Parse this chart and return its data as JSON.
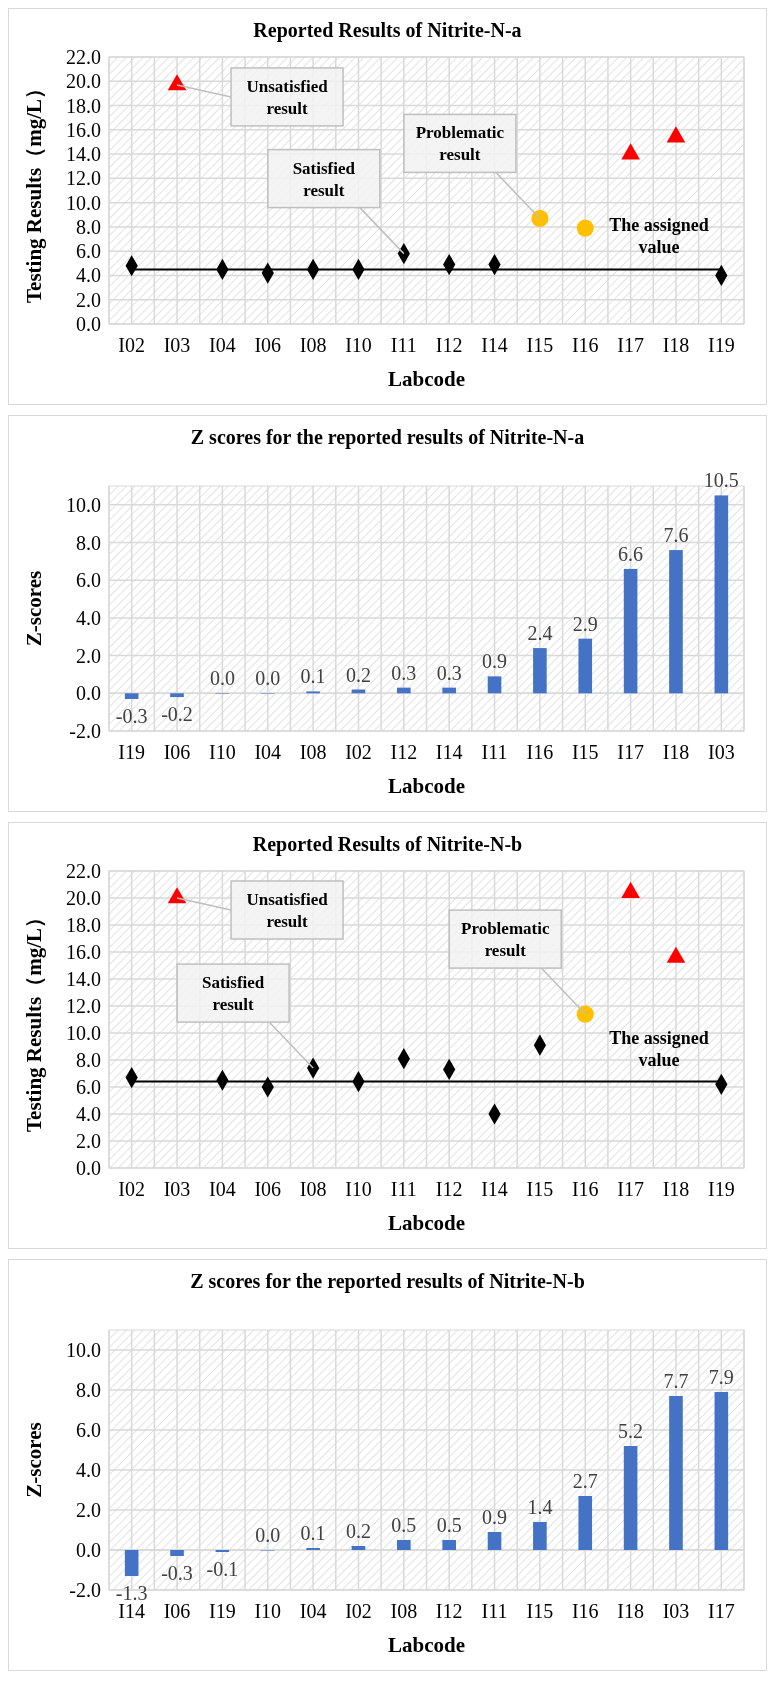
{
  "chart_data": [
    {
      "type": "scatter",
      "title": "Reported Results of Nitrite-N-a",
      "xlabel": "Labcode",
      "ylabel": "Testing Results（mg/L）",
      "categories": [
        "I02",
        "I03",
        "I04",
        "I06",
        "I08",
        "I10",
        "I11",
        "I12",
        "I14",
        "I15",
        "I16",
        "I17",
        "I18",
        "I19"
      ],
      "series": [
        {
          "color": "#000000",
          "marker": "diamond",
          "values": [
            4.8,
            null,
            4.5,
            4.2,
            4.5,
            4.5,
            5.8,
            4.9,
            4.9,
            null,
            null,
            null,
            null,
            4.0
          ]
        },
        {
          "color": "#ffc000",
          "marker": "circle",
          "values": [
            null,
            null,
            null,
            null,
            null,
            null,
            null,
            null,
            null,
            8.7,
            7.9,
            null,
            null,
            null
          ]
        },
        {
          "color": "#ff0000",
          "marker": "triangle",
          "values": [
            null,
            19.7,
            null,
            null,
            null,
            null,
            null,
            null,
            null,
            null,
            null,
            14.0,
            15.4,
            null
          ]
        }
      ],
      "ylim": [
        0,
        22
      ],
      "yticks": [
        {
          "value": 0,
          "label": "0.0"
        },
        {
          "value": 2,
          "label": "2.0"
        },
        {
          "value": 4,
          "label": "4.0"
        },
        {
          "value": 6,
          "label": "6.0"
        },
        {
          "value": 8,
          "label": "8.0"
        },
        {
          "value": 10,
          "label": "10.0"
        },
        {
          "value": 12,
          "label": "12.0"
        },
        {
          "value": 14,
          "label": "14.0"
        },
        {
          "value": 16,
          "label": "16.0"
        },
        {
          "value": 18,
          "label": "18.0"
        },
        {
          "value": 20,
          "label": "20.0"
        },
        {
          "value": 22,
          "label": "22.0"
        }
      ],
      "ref_lines": [
        {
          "axis": "y",
          "value": 4.5,
          "label": "The assigned value",
          "color": "#000000"
        }
      ],
      "annotations": [
        {
          "text": "Unsatisfied result",
          "x": "I03",
          "y": 19.7
        },
        {
          "text": "Satisfied result",
          "x": "I11",
          "y": 5.8
        },
        {
          "text": "Problematic result",
          "x": "I15",
          "y": 8.7
        }
      ],
      "grid": true
    },
    {
      "type": "bar",
      "title": "Z scores for the reported results of Nitrite-N-a",
      "xlabel": "Labcode",
      "ylabel": "Z-scores",
      "categories": [
        "I19",
        "I06",
        "I10",
        "I04",
        "I08",
        "I02",
        "I12",
        "I14",
        "I11",
        "I16",
        "I15",
        "I17",
        "I18",
        "I03"
      ],
      "values": [
        -0.3,
        -0.2,
        0.0,
        0.0,
        0.1,
        0.2,
        0.3,
        0.3,
        0.9,
        2.4,
        2.9,
        6.6,
        7.6,
        10.5
      ],
      "value_labels": [
        "-0.3",
        "-0.2",
        "0.0",
        "0.0",
        "0.1",
        "0.2",
        "0.3",
        "0.3",
        "0.9",
        "2.4",
        "2.9",
        "6.6",
        "7.6",
        "10.5"
      ],
      "color": "#4472c4",
      "ylim": [
        -2,
        11
      ],
      "yticks": [
        {
          "value": -2,
          "label": "-2.0"
        },
        {
          "value": 0,
          "label": "0.0"
        },
        {
          "value": 2,
          "label": "2.0"
        },
        {
          "value": 4,
          "label": "4.0"
        },
        {
          "value": 6,
          "label": "6.0"
        },
        {
          "value": 8,
          "label": "8.0"
        },
        {
          "value": 10,
          "label": "10.0"
        }
      ],
      "grid": true
    },
    {
      "type": "scatter",
      "title": "Reported Results of Nitrite-N-b",
      "xlabel": "Labcode",
      "ylabel": "Testing Results（mg/L）",
      "categories": [
        "I02",
        "I03",
        "I04",
        "I06",
        "I08",
        "I10",
        "I11",
        "I12",
        "I14",
        "I15",
        "I16",
        "I17",
        "I18",
        "I19"
      ],
      "series": [
        {
          "color": "#000000",
          "marker": "diamond",
          "values": [
            6.7,
            null,
            6.5,
            6.0,
            7.4,
            6.4,
            8.1,
            7.3,
            4.0,
            9.1,
            null,
            null,
            null,
            6.2
          ]
        },
        {
          "color": "#ffc000",
          "marker": "circle",
          "values": [
            null,
            null,
            null,
            null,
            null,
            null,
            null,
            null,
            null,
            null,
            11.4,
            null,
            null,
            null
          ]
        },
        {
          "color": "#ff0000",
          "marker": "triangle",
          "values": [
            null,
            20.0,
            null,
            null,
            null,
            null,
            null,
            null,
            null,
            null,
            null,
            20.4,
            15.6,
            null
          ]
        }
      ],
      "ylim": [
        0,
        22
      ],
      "yticks": [
        {
          "value": 0,
          "label": "0.0"
        },
        {
          "value": 2,
          "label": "2.0"
        },
        {
          "value": 4,
          "label": "4.0"
        },
        {
          "value": 6,
          "label": "6.0"
        },
        {
          "value": 8,
          "label": "8.0"
        },
        {
          "value": 10,
          "label": "10.0"
        },
        {
          "value": 12,
          "label": "12.0"
        },
        {
          "value": 14,
          "label": "14.0"
        },
        {
          "value": 16,
          "label": "16.0"
        },
        {
          "value": 18,
          "label": "18.0"
        },
        {
          "value": 20,
          "label": "20.0"
        },
        {
          "value": 22,
          "label": "22.0"
        }
      ],
      "ref_lines": [
        {
          "axis": "y",
          "value": 6.4,
          "label": "The assigned value",
          "color": "#000000"
        }
      ],
      "annotations": [
        {
          "text": "Unsatisfied result",
          "x": "I03",
          "y": 20.0
        },
        {
          "text": "Satisfied result",
          "x": "I08",
          "y": 7.4
        },
        {
          "text": "Problematic result",
          "x": "I16",
          "y": 11.4
        }
      ],
      "grid": true
    },
    {
      "type": "bar",
      "title": "Z scores for the reported results of Nitrite-N-b",
      "xlabel": "Labcode",
      "ylabel": "Z-scores",
      "categories": [
        "I14",
        "I06",
        "I19",
        "I10",
        "I04",
        "I02",
        "I08",
        "I12",
        "I11",
        "I15",
        "I16",
        "I18",
        "I03",
        "I17"
      ],
      "values": [
        -1.3,
        -0.3,
        -0.1,
        0.0,
        0.1,
        0.2,
        0.5,
        0.5,
        0.9,
        1.4,
        2.7,
        5.2,
        7.7,
        7.9
      ],
      "value_labels": [
        "-1.3",
        "-0.3",
        "-0.1",
        "0.0",
        "0.1",
        "0.2",
        "0.5",
        "0.5",
        "0.9",
        "1.4",
        "2.7",
        "5.2",
        "7.7",
        "7.9"
      ],
      "color": "#4472c4",
      "ylim": [
        -2,
        11
      ],
      "yticks": [
        {
          "value": -2,
          "label": "-2.0"
        },
        {
          "value": 0,
          "label": "0.0"
        },
        {
          "value": 2,
          "label": "2.0"
        },
        {
          "value": 4,
          "label": "4.0"
        },
        {
          "value": 6,
          "label": "6.0"
        },
        {
          "value": 8,
          "label": "8.0"
        },
        {
          "value": 10,
          "label": "10.0"
        }
      ],
      "grid": true
    }
  ]
}
